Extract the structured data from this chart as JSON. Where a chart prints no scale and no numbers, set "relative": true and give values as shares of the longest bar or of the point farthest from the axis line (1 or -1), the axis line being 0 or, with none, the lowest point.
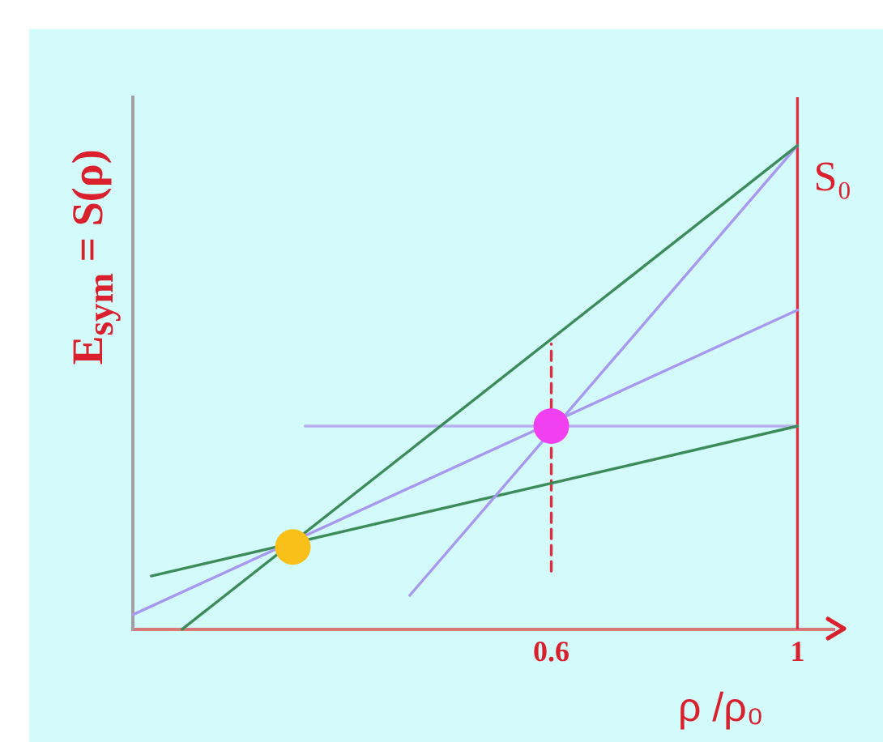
{
  "chart_data": {
    "type": "line",
    "xlabel": "ρ /ρ₀",
    "ylabel": "E$_{sym}$ = S(ρ)",
    "relative": true,
    "xlim": [
      -0.08,
      1.06
    ],
    "xticks": [
      0.6,
      1
    ],
    "grid": false,
    "legend": false,
    "marker": "none",
    "line_style": "solid",
    "series": [
      {
        "color": "#3c8c5a",
        "x": [
          0,
          1
        ],
        "values": [
          0,
          1
        ]
      },
      {
        "color": "#a898f0",
        "x": [
          0.37,
          1
        ],
        "values": [
          0.07,
          1
        ]
      },
      {
        "color": "#a898f0",
        "x": [
          -0.08,
          1
        ],
        "values": [
          0.03,
          0.66
        ]
      },
      {
        "color": "#3c8c5a",
        "x": [
          -0.05,
          1
        ],
        "values": [
          0.11,
          0.42
        ]
      },
      {
        "color": "#b8b0f0",
        "x": [
          0.2,
          1
        ],
        "values": [
          0.42,
          0.42
        ]
      },
      {
        "color": "#e03040",
        "x": [
          0.6,
          0.6
        ],
        "values": [
          0.12,
          0.59
        ],
        "line_style": "dashed"
      },
      {
        "type": "scatter",
        "marker": "circle",
        "x": [
          0.18,
          0.6
        ],
        "values": [
          0.17,
          0.42
        ],
        "colors": [
          "#f8c018",
          "#f040f0"
        ]
      }
    ],
    "ref_lines": [
      {
        "axis": "x",
        "value": 1,
        "color": "#e03040"
      }
    ],
    "annotations": [
      {
        "text": "S₀",
        "x": 1,
        "y": 1
      }
    ]
  }
}
